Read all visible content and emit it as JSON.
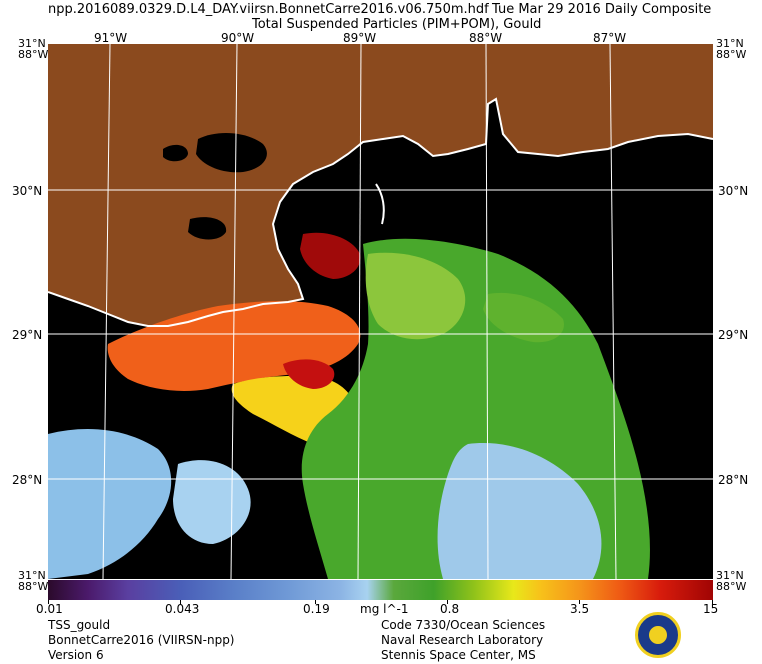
{
  "header": {
    "file_name": "npp.2016089.0329.D.L4_DAY.viirsn.BonnetCarre2016.v06.750m.hdf",
    "date_label": "Tue Mar 29 2016 Daily Composite",
    "product_title": "Total Suspended Particles (PIM+POM), Gould"
  },
  "map": {
    "lon_labels": [
      "91°W",
      "90°W",
      "89°W",
      "88°W",
      "87°W"
    ],
    "lat_labels_left": [
      "31°N",
      "30°N",
      "29°N",
      "28°N"
    ],
    "lat_labels_right": [
      "31°N",
      "30°N",
      "29°N",
      "28°N"
    ],
    "corner_labels": {
      "top_left": "31°N\n88°W",
      "top_right": "31°N\n88°W",
      "bottom_left": "31°N\n88°W",
      "bottom_right": "31°N\n88°W"
    },
    "colors": {
      "land": "#8b4a1e",
      "water_nodata": "#000000",
      "grid": "#ffffff"
    }
  },
  "colorbar": {
    "tick_labels": [
      "0.01",
      "0.043",
      "0.19",
      "0.8",
      "3.5",
      "15"
    ],
    "unit": "mg l^-1"
  },
  "footer": {
    "left": [
      "TSS_gould",
      "BonnetCarre2016 (VIIRSN-npp)",
      "Version 6"
    ],
    "right": [
      "Code 7330/Ocean Sciences",
      "Naval Research Laboratory",
      "Stennis Space Center, MS"
    ]
  },
  "logo": {
    "icon": "navy-seal-icon"
  }
}
